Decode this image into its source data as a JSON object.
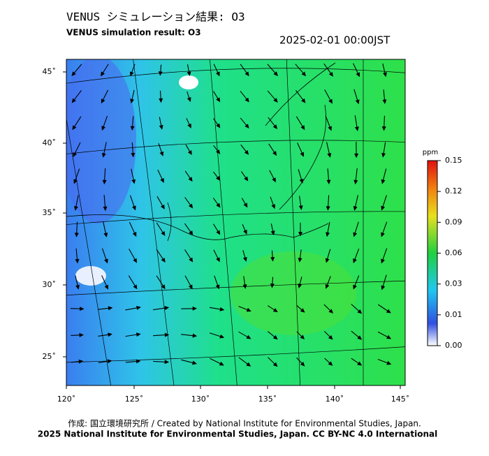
{
  "header": {
    "title": "VENUS シミュレーション結果: O3",
    "subtitle": "VENUS simulation result: O3",
    "timestamp": "2025-02-01 00:00JST"
  },
  "map": {
    "lon_labels": [
      "120˚",
      "125˚",
      "130˚",
      "135˚",
      "140˚",
      "145˚"
    ],
    "lat_labels": [
      "45˚",
      "40˚",
      "35˚",
      "30˚",
      "25˚"
    ]
  },
  "colorbar": {
    "unit": "ppm",
    "labels": [
      "0.15",
      "0.12",
      "0.09",
      "0.06",
      "0.03",
      "0.01",
      "0.00"
    ]
  },
  "footer": {
    "credit": "作成: 国立環境研究所 / Created by National Institute for Environmental Studies, Japan.",
    "copyright": "2025 National Institute for Environmental Studies, Japan. CC BY-NC 4.0 International"
  }
}
